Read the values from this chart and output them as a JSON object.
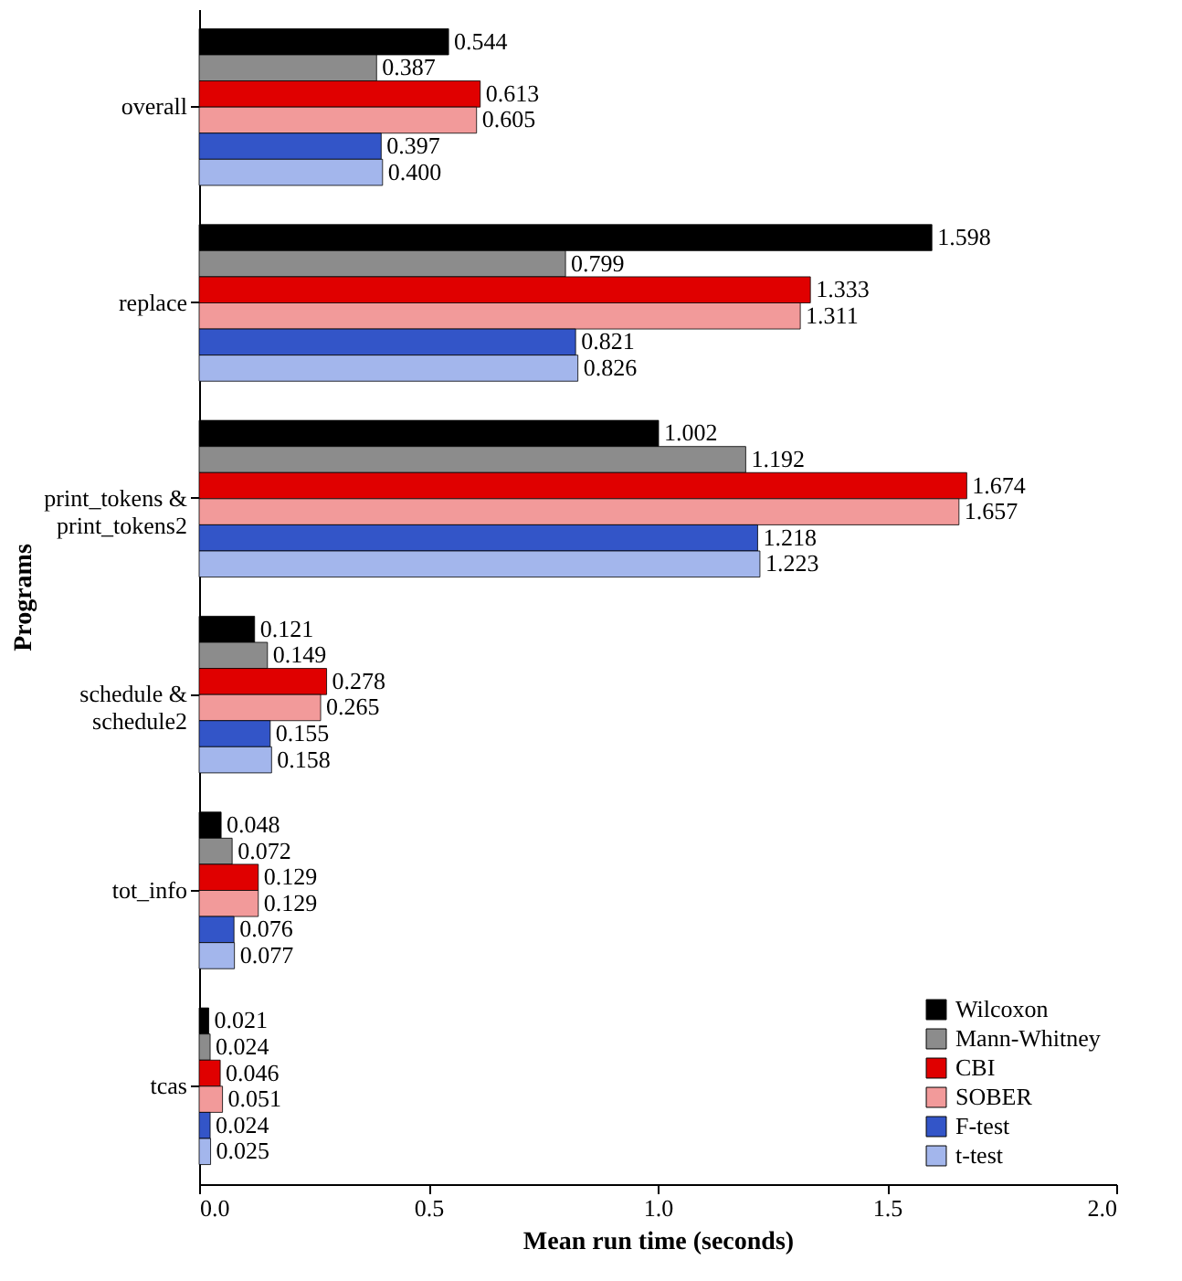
{
  "chart_data": {
    "type": "bar",
    "orientation": "horizontal",
    "xlabel": "Mean run time (seconds)",
    "ylabel": "Programs",
    "categories": [
      "overall",
      "replace",
      "print_tokens &\nprint_tokens2",
      "schedule &\nschedule2",
      "tot_info",
      "tcas"
    ],
    "series": [
      {
        "name": "Wilcoxon",
        "color": "#000000",
        "values": [
          0.544,
          1.598,
          1.002,
          0.121,
          0.048,
          0.021
        ],
        "value_labels": [
          "0.544",
          "1.598",
          "1.002",
          "0.121",
          "0.048",
          "0.021"
        ]
      },
      {
        "name": "Mann-Whitney",
        "color": "#8c8c8c",
        "values": [
          0.387,
          0.799,
          1.192,
          0.149,
          0.072,
          0.024
        ],
        "value_labels": [
          "0.387",
          "0.799",
          "1.192",
          "0.149",
          "0.072",
          "0.024"
        ]
      },
      {
        "name": "CBI",
        "color": "#e00000",
        "values": [
          0.613,
          1.333,
          1.674,
          0.278,
          0.129,
          0.046
        ],
        "value_labels": [
          "0.613",
          "1.333",
          "1.674",
          "0.278",
          "0.129",
          "0.046"
        ]
      },
      {
        "name": "SOBER",
        "color": "#f29a9a",
        "values": [
          0.605,
          1.311,
          1.657,
          0.265,
          0.129,
          0.051
        ],
        "value_labels": [
          "0.605",
          "1.311",
          "1.657",
          "0.265",
          "0.129",
          "0.051"
        ]
      },
      {
        "name": "F-test",
        "color": "#3355c8",
        "values": [
          0.397,
          0.821,
          1.218,
          0.155,
          0.076,
          0.024
        ],
        "value_labels": [
          "0.397",
          "0.821",
          "1.218",
          "0.155",
          "0.076",
          "0.024"
        ]
      },
      {
        "name": "t-test",
        "color": "#a3b6ec",
        "values": [
          0.4,
          0.826,
          1.223,
          0.158,
          0.077,
          0.025
        ],
        "value_labels": [
          "0.400",
          "0.826",
          "1.223",
          "0.158",
          "0.077",
          "0.025"
        ]
      }
    ],
    "xlim": [
      0,
      2
    ],
    "xticks": [
      {
        "value": 0,
        "label": "0.0"
      },
      {
        "value": 0.5,
        "label": "0.5"
      },
      {
        "value": 1,
        "label": "1.0"
      },
      {
        "value": 1.5,
        "label": "1.5"
      },
      {
        "value": 2,
        "label": "2.0"
      }
    ],
    "grid": false,
    "legend": "bottom right"
  }
}
